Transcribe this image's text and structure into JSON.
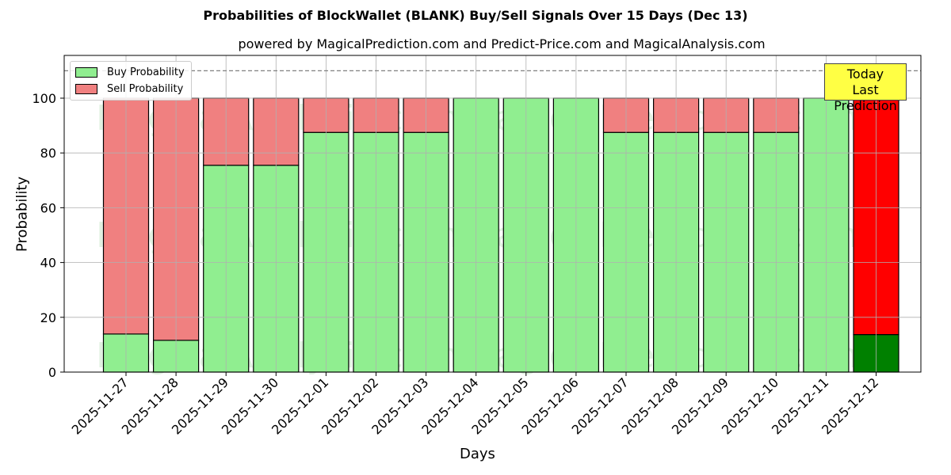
{
  "chart_data": {
    "type": "bar",
    "stacked": true,
    "title": "Probabilities of BlockWallet (BLANK) Buy/Sell Signals Over 15 Days (Dec 13)",
    "subtitle": "powered by MagicalPrediction.com and Predict-Price.com and MagicalAnalysis.com",
    "xlabel": "Days",
    "ylabel": "Probability",
    "ylim": [
      0,
      115
    ],
    "yticks": [
      0,
      20,
      40,
      60,
      80,
      100
    ],
    "grid": true,
    "legend_position": "upper left",
    "reference_line": {
      "y": 110,
      "style": "dashed",
      "color": "#808080"
    },
    "categories": [
      "2025-11-27",
      "2025-11-28",
      "2025-11-29",
      "2025-11-30",
      "2025-12-01",
      "2025-12-02",
      "2025-12-03",
      "2025-12-04",
      "2025-12-05",
      "2025-12-06",
      "2025-12-07",
      "2025-12-08",
      "2025-12-09",
      "2025-12-10",
      "2025-12-11",
      "2025-12-12"
    ],
    "series": [
      {
        "name": "Buy Probability",
        "color": "#90ee90",
        "values": [
          13.9,
          11.6,
          75.5,
          75.5,
          87.5,
          87.5,
          87.5,
          100,
          100,
          100,
          87.5,
          87.5,
          87.5,
          87.5,
          100,
          13.7
        ]
      },
      {
        "name": "Sell Probability",
        "color": "#f08080",
        "values": [
          86.1,
          88.4,
          24.5,
          24.5,
          12.5,
          12.5,
          12.5,
          0,
          0,
          0,
          12.5,
          12.5,
          12.5,
          12.5,
          0,
          86.3
        ]
      }
    ],
    "highlight": {
      "index": 15,
      "buy_color": "#008000",
      "sell_color": "#ff0000"
    },
    "annotation": {
      "line1": "Today",
      "line2": "Last Prediction",
      "bg": "#ffff44"
    },
    "watermarks": [
      "MagicalAnalysis.com",
      "MagicalPrediction.com"
    ]
  },
  "legend": {
    "buy_label": "Buy Probability",
    "sell_label": "Sell Probability",
    "buy_color": "#90ee90",
    "sell_color": "#f08080"
  }
}
